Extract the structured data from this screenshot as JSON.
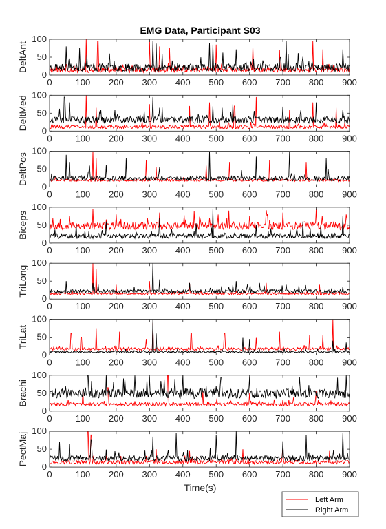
{
  "chart_data": {
    "type": "line",
    "title": "EMG Data, Participant S03",
    "xlabel": "Time(s)",
    "xlim": [
      0,
      900
    ],
    "ylim": [
      0,
      100
    ],
    "xticks": [
      0,
      100,
      200,
      300,
      400,
      500,
      600,
      700,
      800,
      900
    ],
    "yticks": [
      0,
      50,
      100
    ],
    "legend_position": "bottom-right",
    "colors": {
      "left": "#ff0000",
      "right": "#000000"
    },
    "legend": [
      {
        "label": "Left Arm",
        "color": "#ff0000"
      },
      {
        "label": "Right Arm",
        "color": "#000000"
      }
    ],
    "panels": [
      {
        "ylabel": "DeltAnt",
        "left": {
          "name": "Left Arm",
          "base": 12,
          "amp": 14,
          "seed": 11,
          "spikes": [
            [
              110,
              100
            ],
            [
              145,
              95
            ],
            [
              300,
              98
            ],
            [
              330,
              80
            ],
            [
              360,
              75
            ],
            [
              500,
              85
            ],
            [
              610,
              80
            ],
            [
              690,
              70
            ],
            [
              790,
              95
            ],
            [
              820,
              72
            ]
          ]
        },
        "right": {
          "name": "Right Arm",
          "base": 18,
          "amp": 22,
          "seed": 23,
          "spikes": [
            [
              50,
              80
            ],
            [
              90,
              75
            ],
            [
              180,
              60
            ],
            [
              310,
              95
            ],
            [
              320,
              88
            ],
            [
              480,
              90
            ],
            [
              490,
              85
            ],
            [
              560,
              72
            ],
            [
              710,
              95
            ],
            [
              880,
              72
            ]
          ]
        }
      },
      {
        "ylabel": "DeltMed",
        "left": {
          "name": "Left Arm",
          "base": 10,
          "amp": 10,
          "seed": 31,
          "spikes": [
            [
              110,
              100
            ],
            [
              140,
              65
            ],
            [
              300,
              75
            ],
            [
              420,
              70
            ],
            [
              480,
              80
            ],
            [
              555,
              70
            ],
            [
              620,
              95
            ],
            [
              720,
              60
            ],
            [
              790,
              80
            ],
            [
              860,
              65
            ]
          ]
        },
        "right": {
          "name": "Right Arm",
          "base": 28,
          "amp": 20,
          "seed": 37,
          "spikes": [
            [
              45,
              95
            ],
            [
              60,
              80
            ],
            [
              150,
              55
            ],
            [
              310,
              95
            ],
            [
              330,
              65
            ],
            [
              490,
              70
            ],
            [
              550,
              75
            ],
            [
              700,
              68
            ],
            [
              800,
              80
            ],
            [
              880,
              60
            ]
          ]
        }
      },
      {
        "ylabel": "DeltPos",
        "left": {
          "name": "Left Arm",
          "base": 18,
          "amp": 6,
          "seed": 41,
          "spikes": [
            [
              130,
              100
            ],
            [
              140,
              80
            ],
            [
              290,
              75
            ],
            [
              320,
              55
            ],
            [
              470,
              60
            ],
            [
              540,
              70
            ],
            [
              660,
              75
            ],
            [
              770,
              70
            ]
          ]
        },
        "right": {
          "name": "Right Arm",
          "base": 22,
          "amp": 14,
          "seed": 43,
          "spikes": [
            [
              50,
              90
            ],
            [
              60,
              70
            ],
            [
              120,
              60
            ],
            [
              170,
              62
            ],
            [
              230,
              80
            ],
            [
              330,
              55
            ],
            [
              480,
              100
            ],
            [
              620,
              85
            ],
            [
              720,
              100
            ],
            [
              830,
              80
            ]
          ]
        }
      },
      {
        "ylabel": "Biceps",
        "left": {
          "name": "Left Arm",
          "base": 45,
          "amp": 22,
          "seed": 53,
          "spikes": [
            [
              60,
              75
            ],
            [
              130,
              95
            ],
            [
              200,
              80
            ],
            [
              330,
              85
            ],
            [
              480,
              70
            ],
            [
              600,
              75
            ],
            [
              650,
              92
            ],
            [
              700,
              85
            ],
            [
              800,
              95
            ],
            [
              890,
              80
            ]
          ]
        },
        "right": {
          "name": "Right Arm",
          "base": 18,
          "amp": 14,
          "seed": 59,
          "spikes": [
            [
              80,
              50
            ],
            [
              170,
              60
            ],
            [
              330,
              70
            ],
            [
              440,
              55
            ],
            [
              490,
              95
            ],
            [
              620,
              50
            ],
            [
              760,
              60
            ],
            [
              880,
              75
            ]
          ]
        }
      },
      {
        "ylabel": "TriLong",
        "left": {
          "name": "Left Arm",
          "base": 14,
          "amp": 6,
          "seed": 61,
          "spikes": [
            [
              130,
              100
            ],
            [
              140,
              85
            ],
            [
              200,
              40
            ],
            [
              300,
              50
            ],
            [
              420,
              45
            ],
            [
              650,
              45
            ],
            [
              810,
              40
            ]
          ]
        },
        "right": {
          "name": "Right Arm",
          "base": 20,
          "amp": 10,
          "seed": 67,
          "spikes": [
            [
              50,
              50
            ],
            [
              130,
              45
            ],
            [
              310,
              100
            ],
            [
              330,
              55
            ],
            [
              420,
              45
            ],
            [
              560,
              50
            ],
            [
              630,
              45
            ],
            [
              710,
              40
            ],
            [
              880,
              35
            ]
          ]
        }
      },
      {
        "ylabel": "TriLat",
        "left": {
          "name": "Left Arm",
          "base": 16,
          "amp": 8,
          "seed": 71,
          "spikes": [
            [
              65,
              60
            ],
            [
              95,
              50
            ],
            [
              140,
              75
            ],
            [
              210,
              65
            ],
            [
              290,
              45
            ],
            [
              310,
              90
            ],
            [
              425,
              60
            ],
            [
              525,
              60
            ],
            [
              620,
              50
            ],
            [
              690,
              65
            ],
            [
              780,
              55
            ],
            [
              820,
              55
            ],
            [
              850,
              100
            ]
          ]
        },
        "right": {
          "name": "Right Arm",
          "base": 8,
          "amp": 5,
          "seed": 73,
          "spikes": [
            [
              310,
              100
            ],
            [
              320,
              60
            ],
            [
              580,
              50
            ],
            [
              600,
              45
            ],
            [
              850,
              40
            ],
            [
              890,
              35
            ]
          ]
        }
      },
      {
        "ylabel": "Brachi",
        "left": {
          "name": "Left Arm",
          "base": 18,
          "amp": 10,
          "seed": 83,
          "spikes": [
            [
              100,
              60
            ],
            [
              175,
              65
            ],
            [
              355,
              100
            ],
            [
              460,
              55
            ],
            [
              600,
              50
            ],
            [
              800,
              55
            ]
          ]
        },
        "right": {
          "name": "Right Arm",
          "base": 45,
          "amp": 28,
          "seed": 89,
          "spikes": [
            [
              115,
              100
            ],
            [
              170,
              100
            ],
            [
              300,
              95
            ],
            [
              400,
              100
            ],
            [
              515,
              95
            ],
            [
              600,
              95
            ],
            [
              750,
              95
            ],
            [
              890,
              100
            ]
          ]
        }
      },
      {
        "ylabel": "PectMaj",
        "left": {
          "name": "Left Arm",
          "base": 12,
          "amp": 10,
          "seed": 97,
          "spikes": [
            [
              115,
              100
            ],
            [
              125,
              90
            ],
            [
              320,
              50
            ],
            [
              420,
              45
            ],
            [
              580,
              50
            ],
            [
              700,
              55
            ],
            [
              840,
              45
            ]
          ]
        },
        "right": {
          "name": "Right Arm",
          "base": 22,
          "amp": 16,
          "seed": 101,
          "spikes": [
            [
              30,
              70
            ],
            [
              60,
              65
            ],
            [
              125,
              75
            ],
            [
              310,
              85
            ],
            [
              380,
              95
            ],
            [
              500,
              90
            ],
            [
              560,
              100
            ],
            [
              700,
              72
            ],
            [
              770,
              90
            ],
            [
              880,
              95
            ]
          ]
        }
      }
    ]
  }
}
